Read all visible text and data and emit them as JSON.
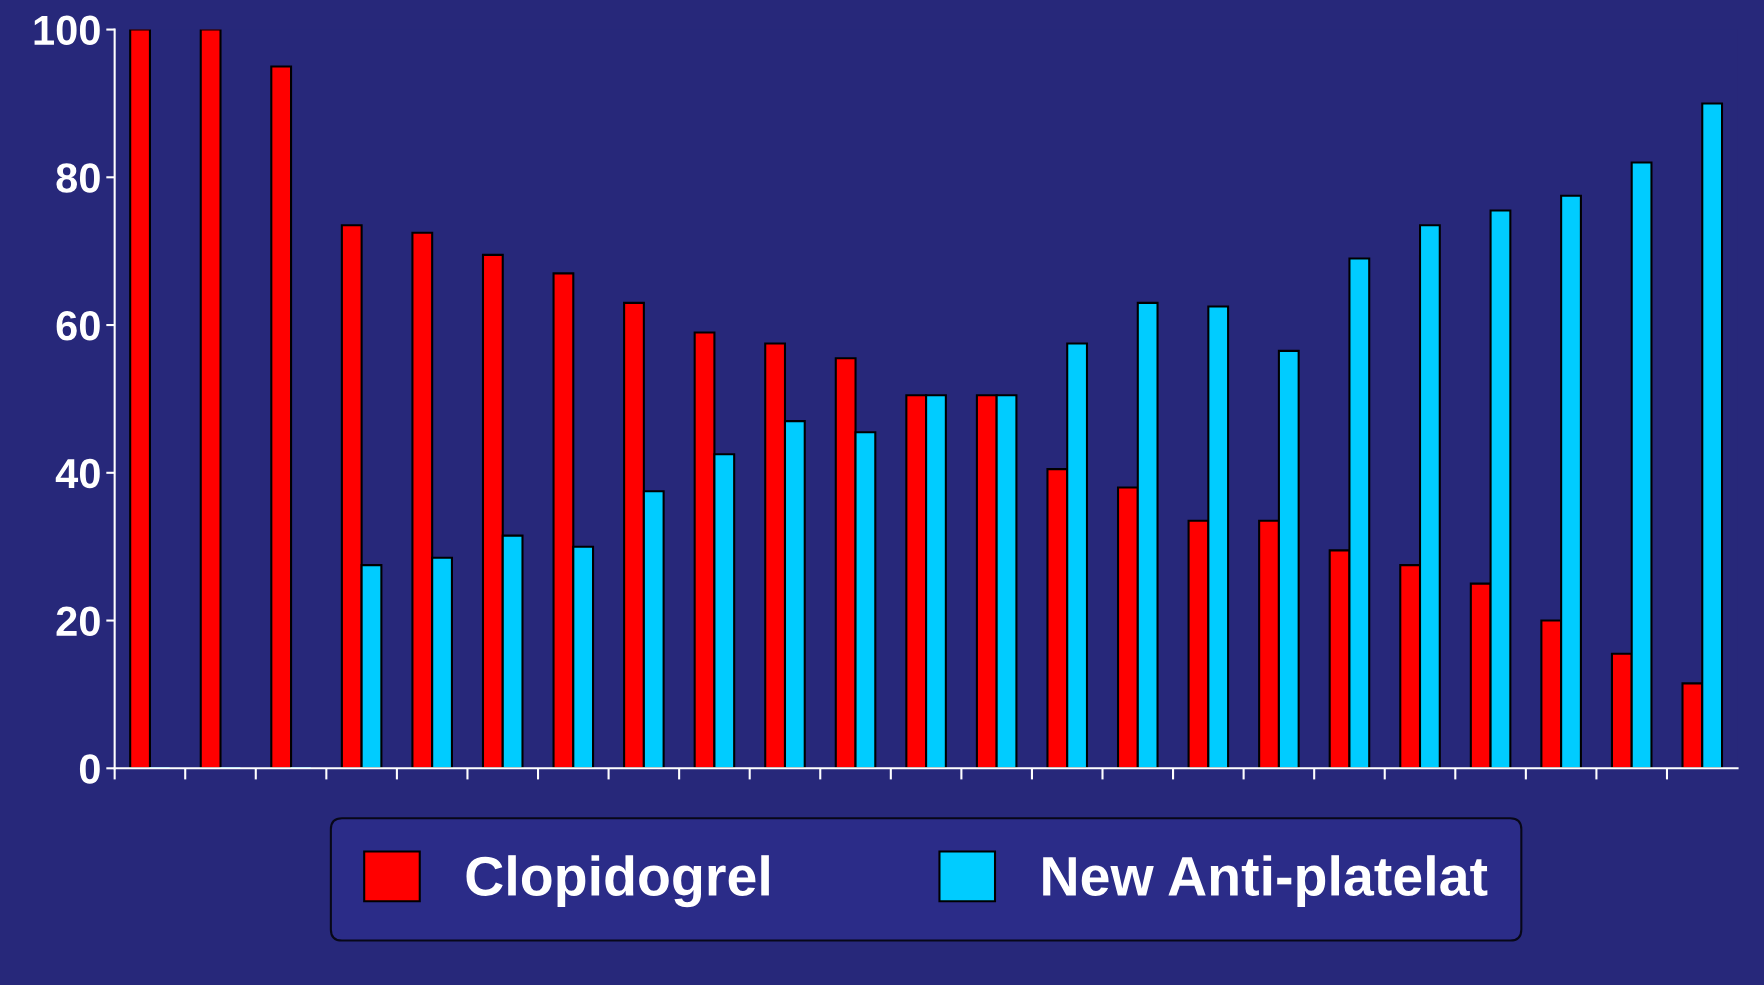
{
  "chart_data": {
    "type": "bar",
    "categories": [
      null,
      null,
      null,
      null,
      null,
      null,
      null,
      null,
      null,
      null,
      null,
      null,
      null,
      null,
      null,
      null,
      null,
      null,
      null,
      null,
      null,
      null,
      null
    ],
    "series": [
      {
        "name": "Clopidogrel",
        "color": "#ff0000",
        "values": [
          100,
          100,
          95,
          73.5,
          72.5,
          69.5,
          67,
          63,
          59,
          57.5,
          55.5,
          50.5,
          50.5,
          40.5,
          38,
          33.5,
          33.5,
          29.5,
          27.5,
          25,
          20,
          15.5,
          11.5
        ]
      },
      {
        "name": "New Anti-platelat",
        "color": "#00ccff",
        "values": [
          0,
          0,
          0,
          27.5,
          28.5,
          31.5,
          30,
          37.5,
          42.5,
          47,
          45.5,
          50.5,
          50.5,
          57.5,
          63,
          62.5,
          56.5,
          69,
          73.5,
          75.5,
          77.5,
          82,
          90
        ]
      }
    ],
    "ylim": [
      0,
      100
    ],
    "yticks": [
      0,
      20,
      40,
      60,
      80,
      100
    ],
    "grid": false,
    "legend": "bottom",
    "tick_labels": "y"
  }
}
